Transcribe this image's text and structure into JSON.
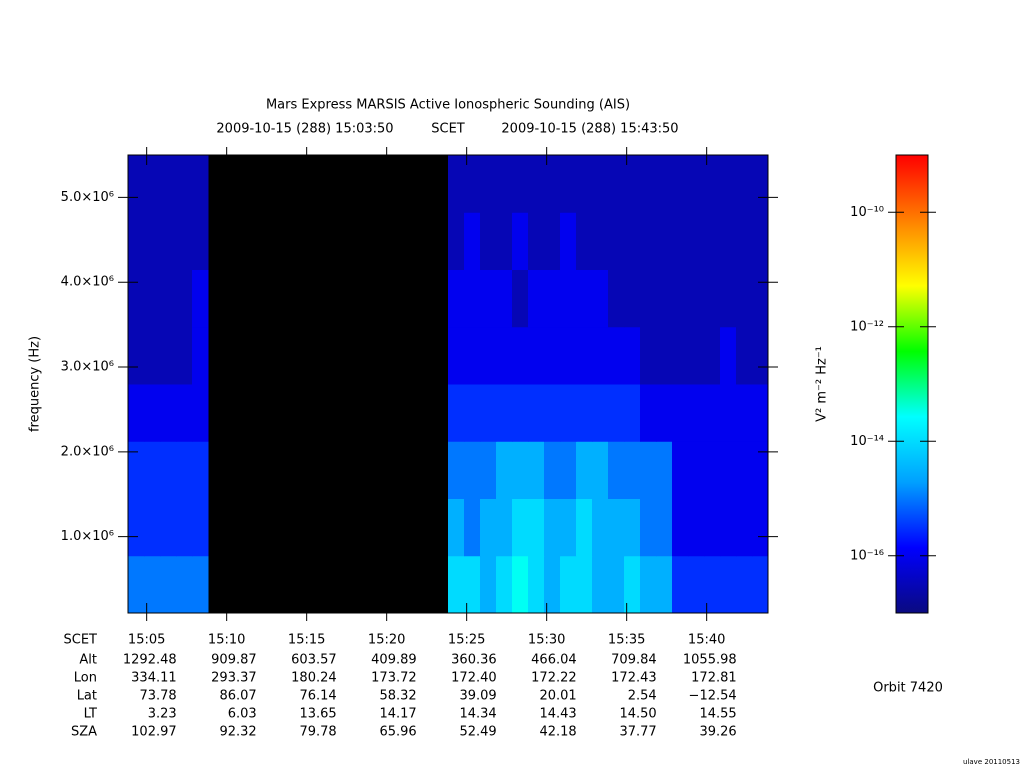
{
  "chart_data": {
    "type": "heatmap",
    "title": "Mars Express MARSIS Active Ionospheric Sounding (AIS)",
    "start": "2009-10-15 (288) 15:03:50",
    "frame": "SCET",
    "end": "2009-10-15 (288) 15:43:50",
    "ylabel": "frequency (Hz)",
    "ylim": [
      100000,
      5500000
    ],
    "yticks": [
      {
        "value": 1000000,
        "label": "1.0×10⁶"
      },
      {
        "value": 2000000,
        "label": "2.0×10⁶"
      },
      {
        "value": 3000000,
        "label": "3.0×10⁶"
      },
      {
        "value": 4000000,
        "label": "4.0×10⁶"
      },
      {
        "value": 5000000,
        "label": "5.0×10⁶"
      }
    ],
    "xticks": [
      "15:05",
      "15:10",
      "15:15",
      "15:20",
      "15:25",
      "15:30",
      "15:35",
      "15:40"
    ],
    "xlabel": "SCET",
    "colorbar_label": "V² m⁻² Hz⁻¹",
    "zlim": [
      1e-17,
      1e-09
    ],
    "log_z": true,
    "zticks": [
      {
        "value": 1e-16,
        "label": "10⁻¹⁶"
      },
      {
        "value": 1e-14,
        "label": "10⁻¹⁴"
      },
      {
        "value": 1e-12,
        "label": "10⁻¹²"
      },
      {
        "value": 1e-10,
        "label": "10⁻¹⁰"
      }
    ],
    "colormap": [
      "#0a0a80",
      "#0000ff",
      "#00a0ff",
      "#00ffff",
      "#00ff00",
      "#ffff00",
      "#ff8000",
      "#ff0000"
    ],
    "z": [
      [
        1e-15,
        1e-15,
        1e-15,
        1e-15,
        1e-15,
        null,
        null,
        null,
        null,
        null,
        null,
        null,
        null,
        null,
        null,
        null,
        null,
        null,
        null,
        null,
        1e-14,
        1e-14,
        3e-15,
        1e-14,
        3e-14,
        1e-14,
        3e-15,
        1e-14,
        1e-14,
        3e-15,
        3e-15,
        1e-14,
        3e-15,
        3e-15,
        3e-16,
        3e-16,
        3e-16,
        3e-16,
        3e-16,
        3e-16
      ],
      [
        3e-16,
        3e-16,
        3e-16,
        3e-16,
        3e-16,
        null,
        null,
        null,
        null,
        null,
        null,
        null,
        null,
        null,
        null,
        null,
        null,
        null,
        null,
        null,
        3e-15,
        1e-15,
        3e-15,
        3e-15,
        1e-14,
        1e-14,
        3e-15,
        3e-15,
        1e-14,
        3e-15,
        3e-15,
        3e-15,
        1e-15,
        1e-15,
        1e-16,
        1e-16,
        1e-16,
        1e-16,
        1e-16,
        1e-16
      ],
      [
        3e-16,
        3e-16,
        3e-16,
        3e-16,
        3e-16,
        null,
        null,
        null,
        null,
        null,
        null,
        null,
        null,
        null,
        null,
        null,
        null,
        null,
        null,
        null,
        1e-15,
        1e-15,
        1e-15,
        3e-15,
        3e-15,
        3e-15,
        1e-15,
        1e-15,
        3e-15,
        3e-15,
        1e-15,
        1e-15,
        1e-15,
        1e-15,
        1e-16,
        1e-16,
        1e-16,
        1e-16,
        1e-16,
        1e-16
      ],
      [
        1e-16,
        1e-16,
        1e-16,
        1e-16,
        1e-16,
        null,
        null,
        null,
        null,
        null,
        null,
        null,
        null,
        null,
        null,
        null,
        null,
        null,
        null,
        null,
        3e-16,
        3e-16,
        3e-16,
        3e-16,
        3e-16,
        3e-16,
        3e-16,
        3e-16,
        3e-16,
        3e-16,
        3e-16,
        3e-16,
        1e-16,
        1e-16,
        1e-16,
        1e-16,
        1e-16,
        1e-16,
        1e-16,
        1e-16
      ],
      [
        3e-17,
        3e-17,
        3e-17,
        3e-17,
        1e-16,
        null,
        null,
        null,
        null,
        null,
        null,
        null,
        null,
        null,
        null,
        null,
        null,
        null,
        null,
        null,
        1e-16,
        1e-16,
        1e-16,
        1e-16,
        1e-16,
        1e-16,
        1e-16,
        1e-16,
        1e-16,
        1e-16,
        1e-16,
        1e-16,
        3e-17,
        3e-17,
        3e-17,
        3e-17,
        3e-17,
        1e-16,
        3e-17,
        3e-17
      ],
      [
        3e-17,
        3e-17,
        3e-17,
        3e-17,
        1e-16,
        null,
        null,
        null,
        null,
        null,
        null,
        null,
        null,
        null,
        null,
        null,
        null,
        null,
        null,
        null,
        1e-16,
        1e-16,
        1e-16,
        1e-16,
        3e-17,
        1e-16,
        1e-16,
        1e-16,
        1e-16,
        1e-16,
        3e-17,
        3e-17,
        3e-17,
        3e-17,
        3e-17,
        3e-17,
        3e-17,
        3e-17,
        3e-17,
        3e-17
      ],
      [
        3e-17,
        3e-17,
        3e-17,
        3e-17,
        3e-17,
        null,
        null,
        null,
        null,
        null,
        null,
        null,
        null,
        null,
        null,
        null,
        null,
        null,
        null,
        null,
        3e-17,
        1e-16,
        3e-17,
        3e-17,
        1e-16,
        3e-17,
        3e-17,
        1e-16,
        3e-17,
        3e-17,
        3e-17,
        3e-17,
        3e-17,
        3e-17,
        3e-17,
        3e-17,
        3e-17,
        3e-17,
        3e-17,
        3e-17
      ],
      [
        3e-17,
        3e-17,
        3e-17,
        3e-17,
        3e-17,
        null,
        null,
        null,
        null,
        null,
        null,
        null,
        null,
        null,
        null,
        null,
        null,
        null,
        null,
        null,
        3e-17,
        3e-17,
        3e-17,
        3e-17,
        3e-17,
        3e-17,
        3e-17,
        3e-17,
        3e-17,
        3e-17,
        3e-17,
        3e-17,
        3e-17,
        3e-17,
        3e-17,
        3e-17,
        3e-17,
        3e-17,
        3e-17,
        3e-17
      ]
    ],
    "ephemeris": [
      {
        "label": "Alt",
        "values": [
          "1292.48",
          "909.87",
          "603.57",
          "409.89",
          "360.36",
          "466.04",
          "709.84",
          "1055.98"
        ]
      },
      {
        "label": "Lon",
        "values": [
          "334.11",
          "293.37",
          "180.24",
          "173.72",
          "172.40",
          "172.22",
          "172.43",
          "172.81"
        ]
      },
      {
        "label": "Lat",
        "values": [
          "73.78",
          "86.07",
          "76.14",
          "58.32",
          "39.09",
          "20.01",
          "2.54",
          "−12.54"
        ]
      },
      {
        "label": "LT",
        "values": [
          "3.23",
          "6.03",
          "13.65",
          "14.17",
          "14.34",
          "14.43",
          "14.50",
          "14.55"
        ]
      },
      {
        "label": "SZA",
        "values": [
          "102.97",
          "92.32",
          "79.78",
          "65.96",
          "52.49",
          "42.18",
          "37.77",
          "39.26"
        ]
      }
    ],
    "orbit": "Orbit 7420",
    "credit": "ulave 20110513"
  }
}
